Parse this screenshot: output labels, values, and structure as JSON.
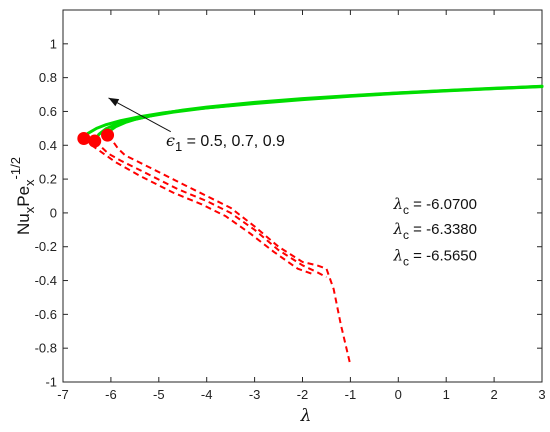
{
  "chart_data": {
    "type": "line",
    "xlabel": "λ",
    "ylabel": {
      "base1": "Nu",
      "sub1": "x",
      "base2": "Pe",
      "sub2": "x",
      "sup": "-1/2"
    },
    "xlim": [
      -7,
      3
    ],
    "ylim": [
      -1,
      1.2
    ],
    "xticks": [
      -7,
      -6,
      -5,
      -4,
      -3,
      -2,
      -1,
      0,
      1,
      2,
      3
    ],
    "yticks": [
      -1,
      -0.8,
      -0.6,
      -0.4,
      -0.2,
      0,
      0.2,
      0.4,
      0.6,
      0.8,
      1
    ],
    "grid": false,
    "colors": {
      "upper": "#00dd00",
      "lower": "#ff0000",
      "critical": "#ff0000",
      "axis": "#262626"
    },
    "series": [
      {
        "branch": "upper",
        "style": "solid",
        "x": [
          -6.07,
          -6.0,
          -5.9,
          -5.7,
          -5.5,
          -5.0,
          -4.5,
          -4.0,
          -3.0,
          -2.0,
          -1.0,
          0.0,
          1.0,
          2.0,
          3.0
        ],
        "y": [
          0.46,
          0.49,
          0.51,
          0.535,
          0.553,
          0.585,
          0.608,
          0.626,
          0.654,
          0.676,
          0.694,
          0.71,
          0.724,
          0.737,
          0.749
        ]
      },
      {
        "branch": "upper",
        "style": "solid",
        "x": [
          -6.338,
          -6.25,
          -6.1,
          -5.9,
          -5.6,
          -5.2,
          -4.7,
          -4.0,
          -3.0,
          -2.0,
          -1.0,
          0.0,
          1.0,
          2.0,
          3.0
        ],
        "y": [
          0.425,
          0.465,
          0.498,
          0.523,
          0.547,
          0.572,
          0.596,
          0.621,
          0.65,
          0.673,
          0.692,
          0.709,
          0.723,
          0.736,
          0.748
        ]
      },
      {
        "branch": "upper",
        "style": "solid",
        "x": [
          -6.565,
          -6.48,
          -6.3,
          -6.1,
          -5.8,
          -5.4,
          -4.9,
          -4.2,
          -3.0,
          -2.0,
          -1.0,
          0.0,
          1.0,
          2.0,
          3.0
        ],
        "y": [
          0.44,
          0.47,
          0.5,
          0.522,
          0.545,
          0.569,
          0.592,
          0.616,
          0.647,
          0.67,
          0.69,
          0.707,
          0.722,
          0.735,
          0.747
        ]
      },
      {
        "branch": "lower",
        "style": "dashed",
        "x": [
          -6.07,
          -5.95,
          -5.85,
          -5.7,
          -5.2,
          -4.5,
          -4.0,
          -3.5,
          -3.0,
          -2.5,
          -2.0,
          -1.7,
          -1.5,
          -1.35,
          -1.2,
          -1.0
        ],
        "y": [
          0.46,
          0.42,
          0.38,
          0.34,
          0.27,
          0.17,
          0.1,
          0.03,
          -0.08,
          -0.2,
          -0.29,
          -0.31,
          -0.33,
          -0.45,
          -0.66,
          -0.9
        ]
      },
      {
        "branch": "lower",
        "style": "dashed",
        "x": [
          -6.338,
          -6.2,
          -6.05,
          -5.8,
          -5.3,
          -4.6,
          -4.0,
          -3.5,
          -3.0,
          -2.5,
          -2.0,
          -1.7,
          -1.5
        ],
        "y": [
          0.425,
          0.39,
          0.35,
          0.31,
          0.24,
          0.14,
          0.07,
          0.0,
          -0.1,
          -0.22,
          -0.31,
          -0.35,
          -0.38
        ]
      },
      {
        "branch": "lower",
        "style": "dashed",
        "x": [
          -6.565,
          -6.4,
          -6.2,
          -5.9,
          -5.4,
          -4.7,
          -4.1,
          -3.6,
          -3.1,
          -2.6,
          -2.1,
          -1.8
        ],
        "y": [
          0.44,
          0.4,
          0.36,
          0.3,
          0.22,
          0.12,
          0.05,
          -0.02,
          -0.12,
          -0.23,
          -0.33,
          -0.36
        ]
      }
    ],
    "critical_points": [
      {
        "x": -6.07,
        "y": 0.46
      },
      {
        "x": -6.338,
        "y": 0.425
      },
      {
        "x": -6.565,
        "y": 0.44
      }
    ],
    "arrow": {
      "from": {
        "x": -4.75,
        "y": 0.48
      },
      "to": {
        "x": -6.05,
        "y": 0.68
      }
    },
    "annotations": {
      "epsilon": {
        "symbol": "ϵ",
        "sub": "1",
        "text": " = 0.5, 0.7, 0.9",
        "x": -4.85,
        "y": 0.43
      },
      "lambda_c": {
        "symbol": "λ",
        "sub": "c",
        "x": -0.1,
        "items": [
          {
            "value": " = -6.0700",
            "y": 0.06
          },
          {
            "value": " = -6.3380",
            "y": -0.09
          },
          {
            "value": " = -6.5650",
            "y": -0.245
          }
        ]
      }
    }
  }
}
